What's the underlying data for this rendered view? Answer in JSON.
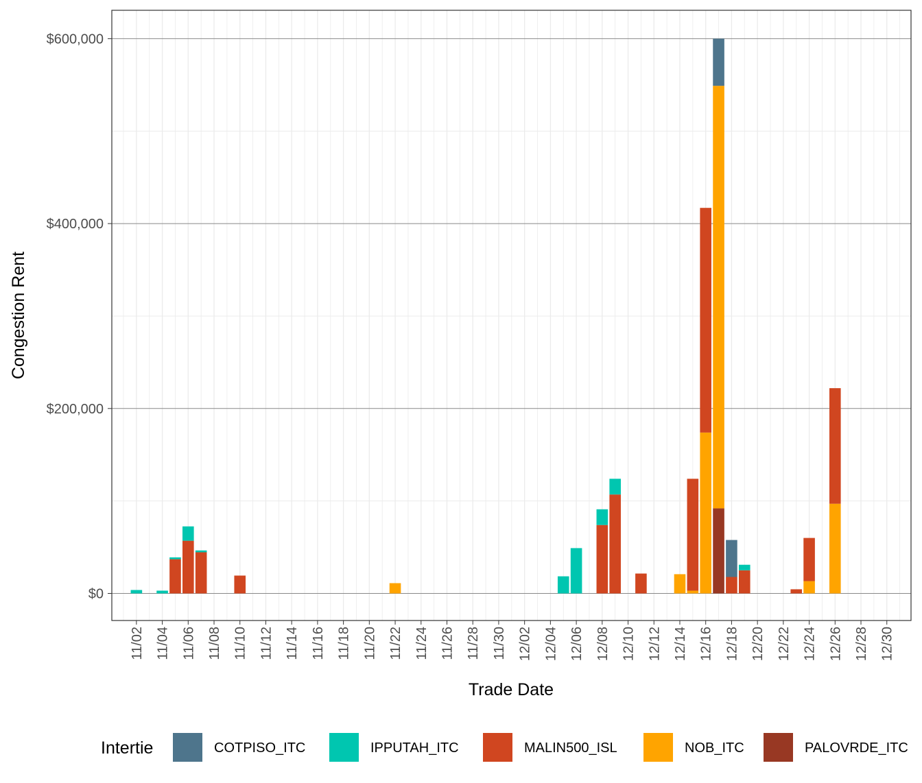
{
  "chart_data": {
    "type": "bar",
    "stacked": true,
    "xlabel": "Trade Date",
    "ylabel": "Congestion Rent",
    "ylim": [
      -25000,
      630000
    ],
    "x_domain": [
      "11/01",
      "12/31"
    ],
    "yticks": [
      "$0",
      "$200,000",
      "$400,000",
      "$600,000"
    ],
    "ytick_values": [
      0,
      200000,
      400000,
      600000
    ],
    "xticks": [
      "11/02",
      "11/04",
      "11/06",
      "11/08",
      "11/10",
      "11/12",
      "11/14",
      "11/16",
      "11/18",
      "11/20",
      "11/22",
      "11/24",
      "11/26",
      "11/28",
      "11/30",
      "12/02",
      "12/04",
      "12/06",
      "12/08",
      "12/10",
      "12/12",
      "12/14",
      "12/16",
      "12/18",
      "12/20",
      "12/22",
      "12/24",
      "12/26",
      "12/28",
      "12/30"
    ],
    "grid": true,
    "legend": {
      "title": "Intertie",
      "position": "bottom"
    },
    "categories": [
      "11/02",
      "11/04",
      "11/05",
      "11/06",
      "11/07",
      "11/10",
      "11/22",
      "12/05",
      "12/06",
      "12/08",
      "12/09",
      "12/11",
      "12/14",
      "12/15",
      "12/16",
      "12/17",
      "12/18",
      "12/19",
      "12/23",
      "12/24",
      "12/26"
    ],
    "series": [
      {
        "name": "COTPISO_ITC",
        "color": "#4E758C",
        "values": [
          0,
          0,
          0,
          0,
          0,
          0,
          0,
          0,
          0,
          0,
          0,
          0,
          0,
          0,
          0,
          51000,
          40000,
          0,
          0,
          0,
          0
        ]
      },
      {
        "name": "IPPUTAH_ITC",
        "color": "#00C6B0",
        "values": [
          3700,
          3000,
          2000,
          15500,
          2000,
          0,
          0,
          18500,
          49000,
          17000,
          17000,
          0,
          0,
          0,
          0,
          0,
          0,
          6000,
          0,
          0,
          0
        ]
      },
      {
        "name": "MALIN500_ISL",
        "color": "#D04620",
        "values": [
          0,
          0,
          37000,
          57000,
          44500,
          19300,
          0,
          0,
          0,
          74000,
          107000,
          21500,
          0,
          121000,
          243000,
          0,
          17800,
          25000,
          4500,
          46700,
          125000
        ]
      },
      {
        "name": "NOB_ITC",
        "color": "#FFA400",
        "values": [
          0,
          0,
          0,
          0,
          0,
          0,
          11100,
          0,
          0,
          0,
          0,
          0,
          20800,
          3000,
          174000,
          457000,
          0,
          0,
          0,
          13300,
          97000
        ]
      },
      {
        "name": "PALOVRDE_ITC",
        "color": "#983823",
        "values": [
          0,
          0,
          0,
          0,
          0,
          0,
          0,
          0,
          0,
          0,
          0,
          0,
          0,
          0,
          0,
          92000,
          0,
          0,
          0,
          0,
          0
        ]
      }
    ]
  }
}
